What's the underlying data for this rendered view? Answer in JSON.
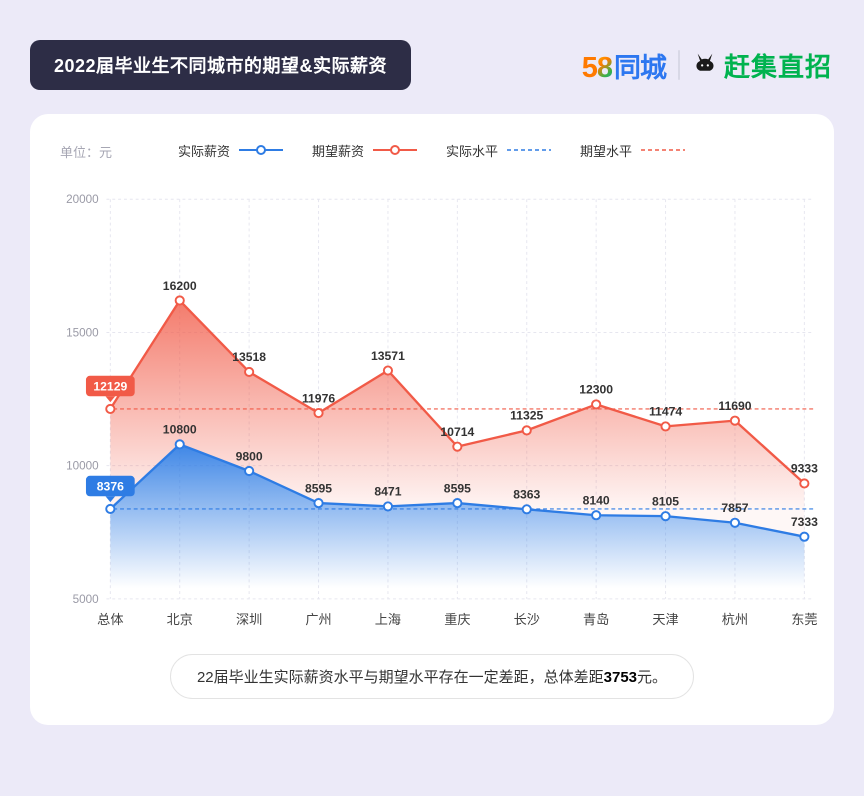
{
  "header": {
    "title": "2022届毕业生不同城市的期望&实际薪资",
    "logo": {
      "five": "5",
      "eight": "8",
      "tongcheng": "同城",
      "ganji": "赶集直招"
    }
  },
  "chart_data": {
    "type": "line",
    "unit_label": "单位：元",
    "categories": [
      "总体",
      "北京",
      "深圳",
      "广州",
      "上海",
      "重庆",
      "长沙",
      "青岛",
      "天津",
      "杭州",
      "东莞"
    ],
    "series": [
      {
        "name": "实际薪资",
        "color": "#2e7ce4",
        "values": [
          8376,
          10800,
          9800,
          8595,
          8471,
          8595,
          8363,
          8140,
          8105,
          7857,
          7333
        ]
      },
      {
        "name": "期望薪资",
        "color": "#f15a47",
        "values": [
          12129,
          16200,
          13518,
          11976,
          13571,
          10714,
          11325,
          12300,
          11474,
          11690,
          9333
        ]
      }
    ],
    "reference_lines": [
      {
        "name": "实际水平",
        "value": 8376,
        "color": "#2e7ce4"
      },
      {
        "name": "期望水平",
        "value": 12129,
        "color": "#f15a47"
      }
    ],
    "ylim": [
      5000,
      20000
    ],
    "yticks": [
      5000,
      10000,
      15000,
      20000
    ],
    "legend_position": "top",
    "grid": true
  },
  "footer": {
    "note_prefix": "22届毕业生实际薪资水平与期望水平存在一定差距，总体差距",
    "note_value": "3753",
    "note_suffix": "元。"
  }
}
